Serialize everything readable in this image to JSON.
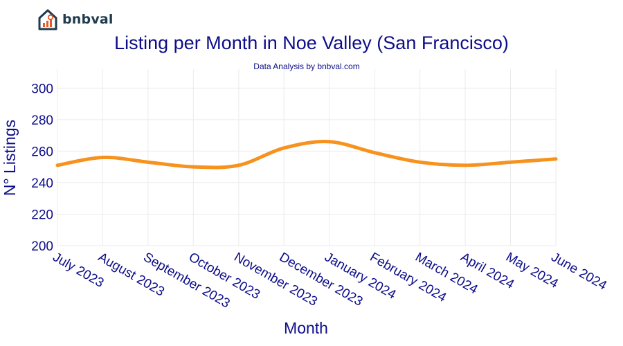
{
  "brand": {
    "name": "bnbval",
    "logo_icon": "house-chart-icon"
  },
  "chart_data": {
    "type": "line",
    "title": "Listing per Month in Noe Valley (San Francisco)",
    "subtitle": "Data Analysis by bnbval.com",
    "xlabel": "Month",
    "ylabel": "N° Listings",
    "ylim": [
      200,
      312
    ],
    "yticks": [
      200,
      220,
      240,
      260,
      280,
      300
    ],
    "grid": true,
    "legend": "none",
    "color": "#f7921e",
    "categories": [
      "July 2023",
      "August 2023",
      "September 2023",
      "October 2023",
      "November 2023",
      "December 2023",
      "January 2024",
      "February 2024",
      "March 2024",
      "April 2024",
      "May 2024",
      "June 2024"
    ],
    "values": [
      251,
      256,
      253,
      250,
      251,
      262,
      266,
      259,
      253,
      251,
      253,
      255
    ]
  }
}
